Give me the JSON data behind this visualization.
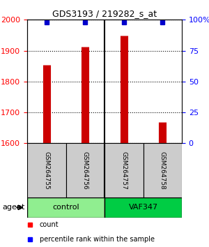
{
  "title": "GDS3193 / 219282_s_at",
  "samples": [
    "GSM264755",
    "GSM264756",
    "GSM264757",
    "GSM264758"
  ],
  "counts": [
    1853,
    1912,
    1949,
    1668
  ],
  "percentile_ranks": [
    98,
    98,
    98,
    98
  ],
  "groups": [
    "control",
    "control",
    "VAF347",
    "VAF347"
  ],
  "group_labels": [
    "control",
    "VAF347"
  ],
  "group_colors": [
    "#90EE90",
    "#00CC00"
  ],
  "bar_color": "#CC0000",
  "dot_color": "#0000CC",
  "ylim_left": [
    1600,
    2000
  ],
  "ylim_right": [
    0,
    100
  ],
  "yticks_left": [
    1600,
    1700,
    1800,
    1900,
    2000
  ],
  "yticks_right": [
    0,
    25,
    50,
    75,
    100
  ],
  "ylabel_right_labels": [
    "0",
    "25",
    "50",
    "75",
    "100%"
  ],
  "background_color": "#ffffff",
  "plot_bg_color": "#ffffff",
  "legend_count_label": "count",
  "legend_pct_label": "percentile rank within the sample",
  "agent_label": "agent"
}
